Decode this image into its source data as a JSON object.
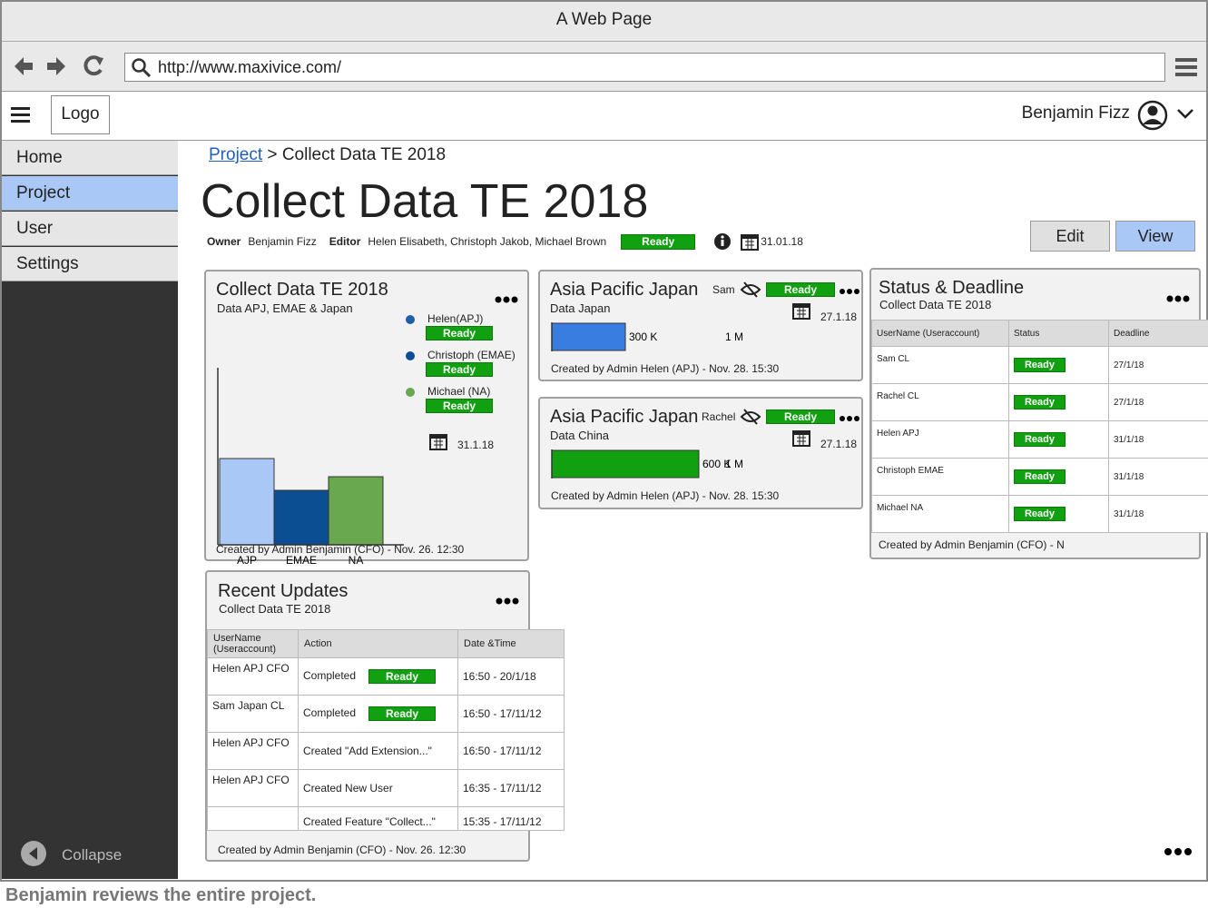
{
  "browser": {
    "title": "A Web Page",
    "url": "http://www.maxivice.com/"
  },
  "header": {
    "logo": "Logo",
    "user": "Benjamin Fizz"
  },
  "sidebar": {
    "items": [
      "Home",
      "Project",
      "User",
      "Settings"
    ],
    "active": 1,
    "collapse": "Collapse"
  },
  "breadcrumb": {
    "link": "Project",
    "separator": ">",
    "current": "Collect Data TE 2018"
  },
  "page": {
    "title": "Collect Data TE 2018",
    "owner_label": "Owner",
    "owner": "Benjamin Fizz",
    "editor_label": "Editor",
    "editors": "Helen Elisabeth, Christoph Jakob, Michael Brown",
    "status": "Ready",
    "date": "31.01.18",
    "buttons": [
      "Edit",
      "View"
    ]
  },
  "chart_card": {
    "title": "Collect Data TE 2018",
    "subtitle": "Data APJ, EMAE & Japan",
    "chart": {
      "type": "bar",
      "categories": [
        "AJP",
        "EMAE",
        "NA"
      ],
      "values": [
        95,
        60,
        75
      ],
      "colors": [
        "#a9c8f5",
        "#0b4e91",
        "#6aa84f"
      ],
      "ylim": [
        0,
        195
      ]
    },
    "legend": [
      {
        "name": "Helen(APJ)",
        "status": "Ready",
        "color": "#1f5fa8"
      },
      {
        "name": "Christoph (EMAE)",
        "status": "Ready",
        "color": "#0b4e91"
      },
      {
        "name": "Michael (NA)",
        "status": "Ready",
        "color": "#6aa84f"
      }
    ],
    "date": "31.1.18",
    "footer": "Created by Admin Benjamin (CFO) - Nov. 26. 12:30"
  },
  "apj_cards": [
    {
      "title": "Asia Pacific Japan",
      "user": "Sam",
      "status": "Ready",
      "subtitle": "Data Japan",
      "date": "27.1.18",
      "progress": {
        "value": 300000,
        "label": "300 K",
        "max": 1000000,
        "max_label": "1 M",
        "color": "#3a7de0"
      },
      "footer": "Created by Admin Helen (APJ) - Nov. 28. 15:30"
    },
    {
      "title": "Asia Pacific Japan",
      "user": "Rachel",
      "status": "Ready",
      "subtitle": "Data China",
      "date": "27.1.18",
      "progress": {
        "value": 600000,
        "label": "600 K",
        "max": 1000000,
        "max_label": "1 M",
        "color": "#10a010"
      },
      "footer": "Created by Admin Helen (APJ) - Nov. 28. 15:30"
    }
  ],
  "status_card": {
    "title": "Status & Deadline",
    "subtitle": "Collect Data TE 2018",
    "columns": [
      "UserName (Useraccount)",
      "Status",
      "Deadline"
    ],
    "rows": [
      [
        "Sam CL",
        "Ready",
        "27/1/18"
      ],
      [
        "Rachel CL",
        "Ready",
        "27/1/18"
      ],
      [
        "Helen APJ",
        "Ready",
        "31/1/18"
      ],
      [
        "Christoph EMAE",
        "Ready",
        "31/1/18"
      ],
      [
        "Michael NA",
        "Ready",
        "31/1/18"
      ]
    ],
    "footer": "Created by Admin Benjamin (CFO) - N"
  },
  "updates_card": {
    "title": "Recent Updates",
    "subtitle": "Collect Data TE 2018",
    "columns": [
      "UserName (Useraccount)",
      "Action",
      "Date &Time"
    ],
    "rows": [
      {
        "user": "Helen APJ CFO",
        "action": "Completed",
        "status": "Ready",
        "time": "16:50 - 20/1/18"
      },
      {
        "user": "Sam Japan CL",
        "action": "Completed",
        "status": "Ready",
        "time": "16:50 - 17/11/12"
      },
      {
        "user": "Helen APJ CFO",
        "action": "Created \"Add Extension...\"",
        "time": "16:50 - 17/11/12"
      },
      {
        "user": "Helen APJ CFO",
        "action": "Created New User",
        "time": "16:35 - 17/11/12"
      },
      {
        "action": "Created Feature \"Collect...\"",
        "time": "15:35 - 17/11/12"
      }
    ],
    "footer": "Created by Admin Benjamin (CFO) - Nov. 26. 12:30"
  },
  "caption": "Benjamin reviews the entire project."
}
